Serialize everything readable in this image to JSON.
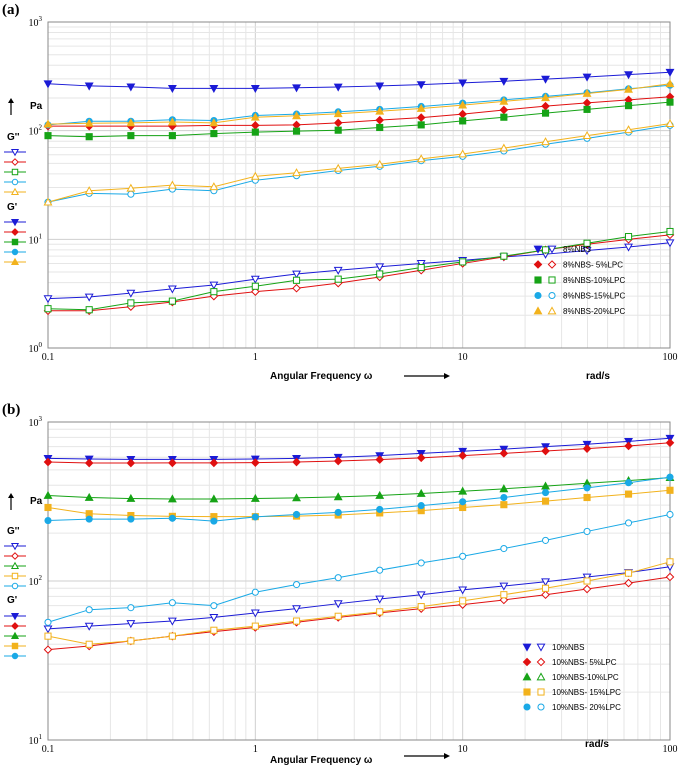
{
  "chart_data": [
    {
      "type": "line",
      "panel_label": "(a)",
      "xscale": "log",
      "yscale": "log",
      "xlim": [
        0.1,
        100
      ],
      "ylim": [
        1,
        1000
      ],
      "grid": true,
      "legend_position": "lower-right",
      "xlabel": "Angular Frequency ω",
      "xunit": "rad/s",
      "yunit": "Pa",
      "gpp_label": "G''",
      "gp_label": "G'",
      "x_tick_labels": [
        "0.1",
        "1",
        "10",
        "100"
      ],
      "y_tick_labels": [
        {
          "base": "10",
          "exp": "0"
        },
        {
          "base": "10",
          "exp": "1"
        },
        {
          "base": "10",
          "exp": "2"
        },
        {
          "base": "10",
          "exp": "3"
        }
      ],
      "x": [
        0.1,
        0.158,
        0.251,
        0.398,
        0.631,
        1,
        1.58,
        2.51,
        3.98,
        6.31,
        10,
        15.8,
        25.1,
        39.8,
        63.1,
        100
      ],
      "series": [
        {
          "name": "8%NBS",
          "color": "#1b1bd6",
          "marker": "triangle-down",
          "storage": [
            270,
            258,
            253,
            245,
            245,
            245,
            248,
            252,
            258,
            265,
            275,
            285,
            298,
            312,
            328,
            345
          ],
          "loss": [
            2.85,
            2.95,
            3.2,
            3.5,
            3.8,
            4.3,
            4.8,
            5.2,
            5.6,
            6.0,
            6.4,
            6.9,
            7.3,
            7.9,
            8.5,
            9.3
          ]
        },
        {
          "name": "8%NBS- 5%LPC",
          "color": "#e01010",
          "marker": "diamond",
          "storage": [
            110,
            110,
            110,
            110,
            112,
            112,
            113,
            118,
            125,
            132,
            142,
            155,
            168,
            180,
            192,
            205
          ],
          "loss": [
            2.2,
            2.2,
            2.4,
            2.65,
            3.0,
            3.3,
            3.55,
            3.95,
            4.5,
            5.2,
            6.0,
            6.9,
            8.0,
            9.0,
            10.0,
            11.0
          ]
        },
        {
          "name": "8%NBS-10%LPC",
          "color": "#16a316",
          "marker": "square",
          "storage": [
            90,
            88,
            90,
            90,
            94,
            97,
            99,
            101,
            107,
            113,
            123,
            133,
            145,
            157,
            170,
            183
          ],
          "loss": [
            2.3,
            2.25,
            2.6,
            2.7,
            3.3,
            3.7,
            4.2,
            4.3,
            4.8,
            5.5,
            6.2,
            7.0,
            8.0,
            9.2,
            10.6,
            11.8
          ]
        },
        {
          "name": "8%NBS-15%LPC",
          "color": "#1aa9e6",
          "marker": "circle",
          "storage": [
            113,
            122,
            122,
            126,
            124,
            138,
            142,
            149,
            157,
            167,
            179,
            192,
            207,
            223,
            243,
            262
          ],
          "loss": [
            22,
            26.5,
            26,
            29,
            28,
            35,
            38.5,
            43,
            47,
            53,
            58,
            65,
            75,
            85,
            97,
            112
          ]
        },
        {
          "name": "8%NBS-20%LPC",
          "color": "#f2b21c",
          "marker": "triangle-up",
          "storage": [
            115,
            117,
            118,
            120,
            118,
            133,
            137,
            143,
            151,
            160,
            172,
            186,
            201,
            220,
            240,
            270
          ],
          "loss": [
            22,
            28,
            29.5,
            31.5,
            30.5,
            38,
            41,
            45,
            49,
            55,
            61,
            69,
            79,
            90,
            102,
            116
          ]
        }
      ]
    },
    {
      "type": "line",
      "panel_label": "(b)",
      "xscale": "log",
      "yscale": "log",
      "xlim": [
        0.1,
        100
      ],
      "ylim": [
        10,
        1000
      ],
      "grid": true,
      "legend_position": "lower-right",
      "xlabel": "Angular Frequency ω",
      "xunit": "rad/s",
      "yunit": "Pa",
      "gpp_label": "G''",
      "gp_label": "G'",
      "x_tick_labels": [
        "0.1",
        "1",
        "10",
        "100"
      ],
      "y_tick_labels": [
        {
          "base": "10",
          "exp": "1"
        },
        {
          "base": "10",
          "exp": "2"
        },
        {
          "base": "10",
          "exp": "3"
        }
      ],
      "x": [
        0.1,
        0.158,
        0.251,
        0.398,
        0.631,
        1,
        1.58,
        2.51,
        3.98,
        6.31,
        10,
        15.8,
        25.1,
        39.8,
        63.1,
        100
      ],
      "series": [
        {
          "name": "10%NBS",
          "color": "#1b1bd6",
          "marker": "triangle-down",
          "storage": [
            590,
            585,
            582,
            582,
            582,
            585,
            590,
            600,
            615,
            635,
            655,
            675,
            700,
            725,
            755,
            790
          ],
          "loss": [
            50,
            52,
            54,
            56,
            59,
            63,
            67,
            72,
            77,
            82,
            88,
            93,
            99,
            106,
            113,
            123
          ]
        },
        {
          "name": "10%NBS- 5%LPC",
          "color": "#e01010",
          "marker": "diamond",
          "storage": [
            560,
            552,
            552,
            553,
            553,
            555,
            560,
            568,
            580,
            595,
            615,
            635,
            657,
            680,
            707,
            740
          ],
          "loss": [
            37,
            39,
            42,
            45,
            48,
            51,
            55,
            59,
            63,
            67,
            71,
            76,
            82,
            89,
            97,
            106
          ]
        },
        {
          "name": "10%NBS-10%LPC",
          "color": "#16a316",
          "marker": "triangle-up",
          "storage": [
            345,
            335,
            330,
            328,
            328,
            330,
            333,
            338,
            345,
            355,
            367,
            380,
            395,
            412,
            428,
            447
          ]
        },
        {
          "name": "10%NBS- 15%LPC",
          "color": "#f2b21c",
          "marker": "square",
          "storage": [
            290,
            265,
            258,
            255,
            254,
            254,
            256,
            260,
            268,
            277,
            290,
            302,
            318,
            335,
            352,
            372
          ],
          "loss": [
            45,
            40,
            42,
            45,
            49,
            52,
            56,
            60,
            64,
            69,
            75,
            82,
            90,
            100,
            112,
            132
          ]
        },
        {
          "name": "10%NBS- 20%LPC",
          "color": "#1aa9e6",
          "marker": "circle",
          "storage": [
            240,
            245,
            245,
            248,
            238,
            253,
            262,
            270,
            282,
            298,
            315,
            335,
            360,
            385,
            415,
            450
          ],
          "loss": [
            55,
            66,
            68,
            73,
            70,
            85,
            95,
            105,
            117,
            130,
            143,
            160,
            180,
            205,
            232,
            262
          ]
        }
      ]
    }
  ]
}
